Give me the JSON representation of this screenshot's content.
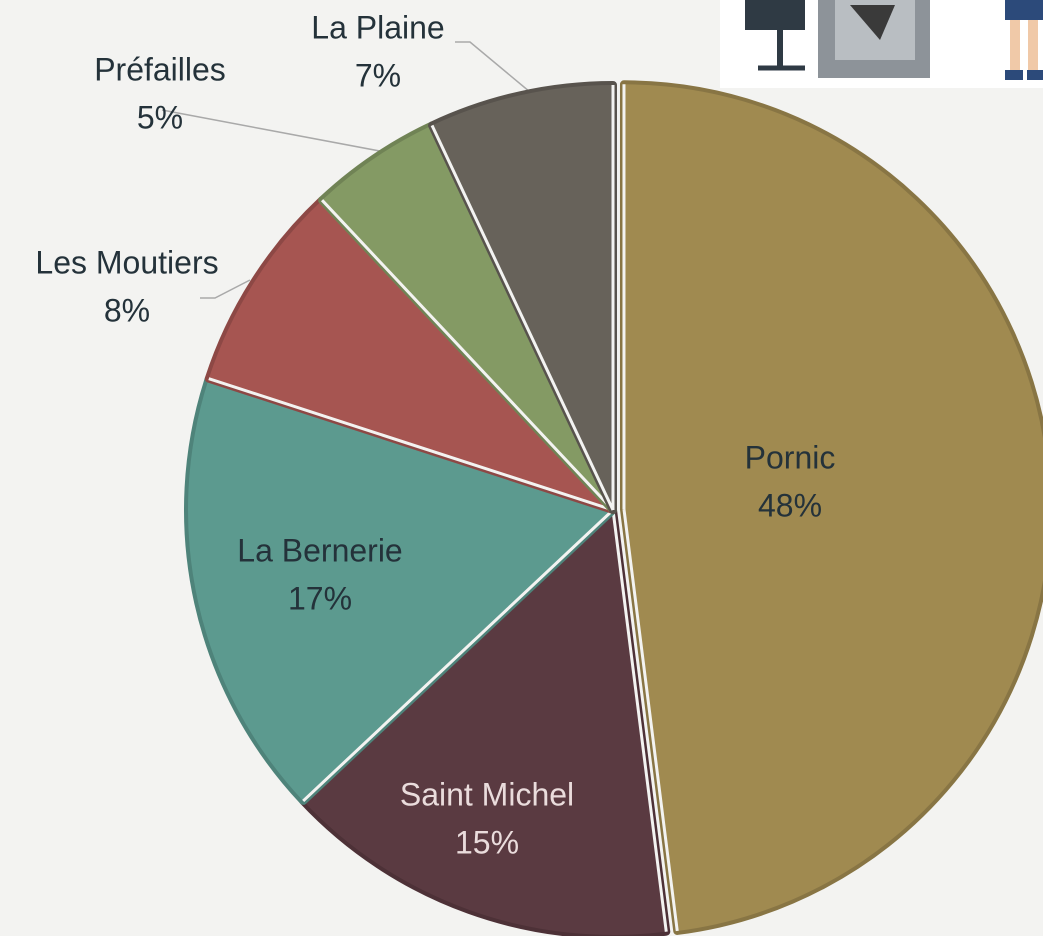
{
  "chart_data": {
    "type": "pie",
    "categories": [
      "Pornic",
      "Saint Michel",
      "La Bernerie",
      "Les Moutiers",
      "Préfailles",
      "La Plaine"
    ],
    "values": [
      48,
      15,
      17,
      8,
      5,
      7
    ],
    "value_labels": [
      "48%",
      "15%",
      "17%",
      "8%",
      "5%",
      "7%"
    ],
    "colors": [
      "#a08a50",
      "#5a3a41",
      "#5c9a8f",
      "#a65551",
      "#849a64",
      "#67625a"
    ]
  }
}
